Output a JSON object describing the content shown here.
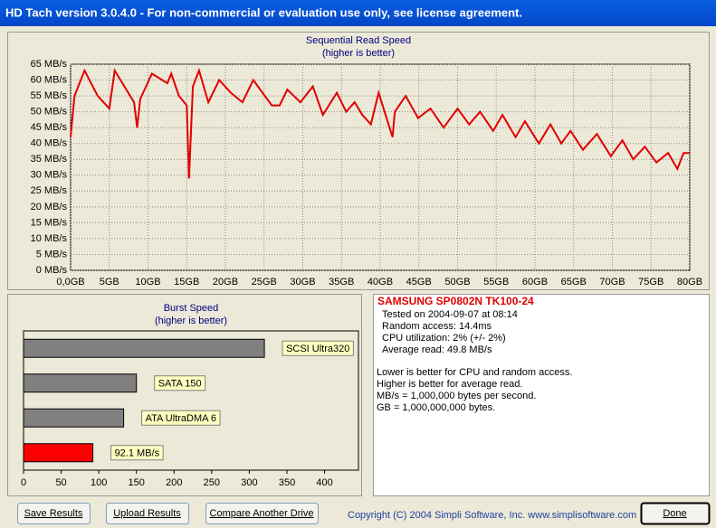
{
  "window_title": "HD Tach version 3.0.4.0  - For non-commercial or evaluation use only, see license agreement.",
  "chart_data": [
    {
      "type": "line",
      "title": "Sequential Read Speed",
      "subtitle": "(higher is better)",
      "xlim": [
        0,
        80
      ],
      "ylim": [
        0,
        65
      ],
      "grid": true,
      "xticks": [
        {
          "value": 0,
          "label": "0,0GB"
        },
        {
          "value": 5,
          "label": "5GB"
        },
        {
          "value": 10,
          "label": "10GB"
        },
        {
          "value": 15,
          "label": "15GB"
        },
        {
          "value": 20,
          "label": "20GB"
        },
        {
          "value": 25,
          "label": "25GB"
        },
        {
          "value": 30,
          "label": "30GB"
        },
        {
          "value": 35,
          "label": "35GB"
        },
        {
          "value": 40,
          "label": "40GB"
        },
        {
          "value": 45,
          "label": "45GB"
        },
        {
          "value": 50,
          "label": "50GB"
        },
        {
          "value": 55,
          "label": "55GB"
        },
        {
          "value": 60,
          "label": "60GB"
        },
        {
          "value": 65,
          "label": "65GB"
        },
        {
          "value": 70,
          "label": "70GB"
        },
        {
          "value": 75,
          "label": "75GB"
        },
        {
          "value": 80,
          "label": "80GB"
        }
      ],
      "yticks": [
        {
          "value": 0,
          "label": "0 MB/s"
        },
        {
          "value": 5,
          "label": "5 MB/s"
        },
        {
          "value": 10,
          "label": "10 MB/s"
        },
        {
          "value": 15,
          "label": "15 MB/s"
        },
        {
          "value": 20,
          "label": "20 MB/s"
        },
        {
          "value": 25,
          "label": "25 MB/s"
        },
        {
          "value": 30,
          "label": "30 MB/s"
        },
        {
          "value": 35,
          "label": "35 MB/s"
        },
        {
          "value": 40,
          "label": "40 MB/s"
        },
        {
          "value": 45,
          "label": "45 MB/s"
        },
        {
          "value": 50,
          "label": "50 MB/s"
        },
        {
          "value": 55,
          "label": "55 MB/s"
        },
        {
          "value": 60,
          "label": "60 MB/s"
        },
        {
          "value": 65,
          "label": "65 MB/s"
        }
      ],
      "series": [
        {
          "color": "#e00000",
          "x": [
            0,
            0.5,
            1.8,
            3.5,
            5,
            5.7,
            8.2,
            8.6,
            9,
            10.5,
            12.5,
            13,
            14,
            15,
            15.3,
            15.8,
            16.6,
            17.8,
            19.2,
            20.7,
            22.2,
            23.6,
            25.1,
            26,
            27,
            28,
            29.7,
            31.3,
            32.6,
            34.4,
            35.6,
            36.7,
            37.7,
            38.8,
            39.8,
            41.6,
            41.9,
            43.3,
            44.9,
            46.5,
            48.2,
            50,
            51.5,
            52.9,
            54.6,
            55.8,
            57.5,
            58.7,
            60.5,
            62,
            63.4,
            64.6,
            66.2,
            68,
            69.8,
            71.3,
            72.7,
            74.2,
            75.7,
            77.2,
            78.4,
            79.2,
            80
          ],
          "values": [
            42,
            55,
            63,
            55,
            51,
            63,
            53,
            45,
            54,
            62,
            59,
            62,
            55,
            52,
            29,
            58,
            63,
            53,
            60,
            56,
            53,
            60,
            55,
            52,
            52,
            57,
            53,
            58,
            49,
            56,
            50,
            53,
            49,
            46,
            56,
            42,
            50,
            55,
            48,
            51,
            45,
            51,
            46,
            50,
            44,
            49,
            42,
            47,
            40,
            46,
            40,
            44,
            38,
            43,
            36,
            41,
            35,
            39,
            34,
            37,
            32,
            37,
            37
          ]
        }
      ]
    },
    {
      "type": "hbar",
      "title": "Burst Speed",
      "subtitle": "(higher is better)",
      "xlim": [
        0,
        445
      ],
      "xticks": [
        0,
        50,
        100,
        150,
        200,
        250,
        300,
        350,
        400
      ],
      "categories": [
        "SCSI Ultra320",
        "SATA 150",
        "ATA UltraDMA 6",
        null
      ],
      "values": [
        320,
        150,
        133,
        92.1
      ],
      "value_labels": [
        null,
        null,
        null,
        "92.1 MB/s"
      ],
      "colors": [
        "#808080",
        "#808080",
        "#808080",
        "#ff0000"
      ]
    }
  ],
  "info": {
    "drive": "SAMSUNG  SP0802N  TK100-24",
    "lines": [
      "Tested on 2004-09-07 at 08:14",
      "Random access: 14.4ms",
      "CPU utilization: 2% (+/- 2%)",
      "Average read: 49.8 MB/s"
    ],
    "notes": [
      "Lower is better for CPU and random access.",
      "Higher is better for average read.",
      "MB/s = 1,000,000 bytes per second.",
      "GB = 1,000,000,000 bytes."
    ]
  },
  "buttons": [
    "Save Results",
    "Upload Results",
    "Compare Another Drive",
    "Done"
  ],
  "copyright": "Copyright (C) 2004 Simpli Software, Inc. www.simplisoftware.com"
}
